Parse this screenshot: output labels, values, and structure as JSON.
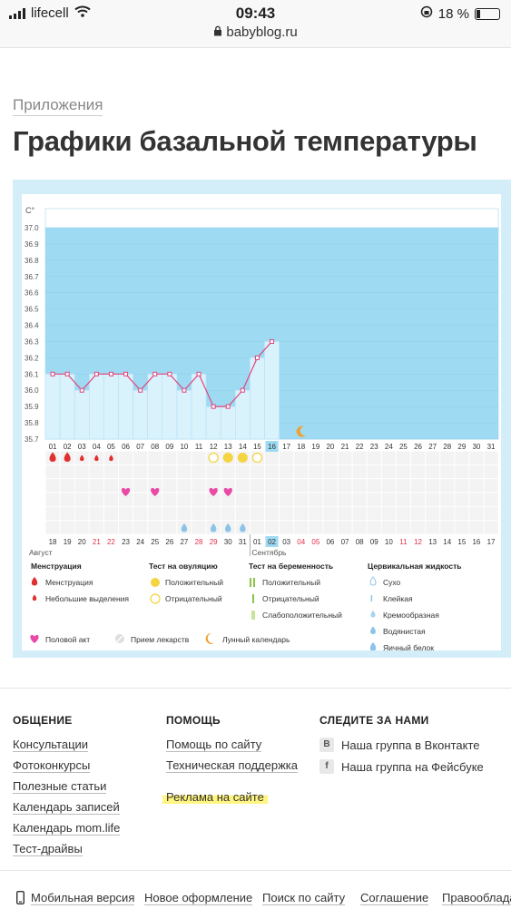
{
  "status": {
    "carrier": "lifecell",
    "time": "09:43",
    "battery": "18 %",
    "url": "babyblog.ru"
  },
  "breadcrumb": "Приложения",
  "title": "Графики базальной температуры",
  "chart_data": {
    "type": "line",
    "ylabel": "C°",
    "ylim": [
      35.7,
      37.0
    ],
    "yticks": [
      "37.0",
      "36.9",
      "36.8",
      "36.7",
      "36.6",
      "36.5",
      "36.4",
      "36.3",
      "36.2",
      "36.1",
      "36.0",
      "35.9",
      "35.8",
      "35.7"
    ],
    "cycle_days": [
      "01",
      "02",
      "03",
      "04",
      "05",
      "06",
      "07",
      "08",
      "09",
      "10",
      "11",
      "12",
      "13",
      "14",
      "15",
      "16",
      "17",
      "18",
      "19",
      "20",
      "21",
      "22",
      "23",
      "24",
      "25",
      "26",
      "27",
      "28",
      "29",
      "30",
      "31"
    ],
    "temperatures": [
      36.1,
      36.1,
      36.0,
      36.1,
      36.1,
      36.1,
      36.0,
      36.1,
      36.1,
      36.0,
      36.1,
      35.9,
      35.9,
      36.0,
      36.2,
      36.3
    ],
    "current_day": "16",
    "dates": [
      "18",
      "19",
      "20",
      "21",
      "22",
      "23",
      "24",
      "25",
      "26",
      "27",
      "28",
      "29",
      "30",
      "31",
      "01",
      "02",
      "03",
      "04",
      "05",
      "06",
      "07",
      "08",
      "09",
      "10",
      "11",
      "12",
      "13",
      "14",
      "15",
      "16",
      "17"
    ],
    "date_weekend": [
      false,
      false,
      false,
      true,
      true,
      false,
      false,
      false,
      false,
      false,
      true,
      true,
      false,
      false,
      false,
      false,
      false,
      true,
      true,
      false,
      false,
      false,
      false,
      false,
      true,
      true,
      false,
      false,
      false,
      false,
      false
    ],
    "current_date": "02",
    "month1": "Август",
    "month2": "Сентябрь",
    "markers": {
      "menstruation_big": [
        1,
        2
      ],
      "menstruation_small": [
        3,
        4,
        5
      ],
      "ovulation_positive": [
        13,
        14
      ],
      "ovulation_negative": [
        12,
        15
      ],
      "intercourse": [
        6,
        8,
        12,
        13
      ],
      "egg_white_mucus": [
        10,
        12,
        13,
        14
      ],
      "moon": [
        18
      ]
    }
  },
  "legend": {
    "menstruation": {
      "title": "Менструация",
      "items": [
        "Менструация",
        "Небольшие выделения"
      ]
    },
    "ovulation": {
      "title": "Тест на овуляцию",
      "items": [
        "Положительный",
        "Отрицательный"
      ]
    },
    "pregnancy": {
      "title": "Тест на беременность",
      "items": [
        "Положительный",
        "Отрицательный",
        "Слабоположительный"
      ]
    },
    "cervical": {
      "title": "Цервикальная жидкость",
      "items": [
        "Сухо",
        "Клейкая",
        "Кремообразная",
        "Водянистая",
        "Яичный белок"
      ]
    },
    "bottom": [
      "Половой акт",
      "Прием лекарств",
      "Лунный календарь"
    ]
  },
  "colors": {
    "plot_bg": "#9fdaf3",
    "bar": "#d9f2fc",
    "line": "#e0457b",
    "menstruation": "#e03030",
    "ovulation": "#f5d442",
    "heart": "#e94aa5",
    "drop": "#8cc3e8",
    "moon": "#f0a030",
    "highlight": "#fff580"
  },
  "footer": {
    "col1": {
      "title": "ОБЩЕНИЕ",
      "links": [
        "Консультации",
        "Фотоконкурсы",
        "Полезные статьи",
        "Календарь записей",
        "Календарь mom.life",
        "Тест-драйвы"
      ]
    },
    "col2": {
      "title": "ПОМОЩЬ",
      "links": [
        "Помощь по сайту",
        "Техническая поддержка"
      ],
      "highlight_link": "Реклама на сайте"
    },
    "col3": {
      "title": "СЛЕДИТЕ ЗА НАМИ",
      "links": [
        {
          "icon": "В",
          "label": "Наша группа в Вконтакте"
        },
        {
          "icon": "f",
          "label": "Наша группа на Фейсбуке"
        }
      ]
    },
    "bottom": [
      "Мобильная версия",
      "Новое оформление",
      "Поиск по сайту",
      "Соглашение",
      "Правообладате"
    ]
  }
}
